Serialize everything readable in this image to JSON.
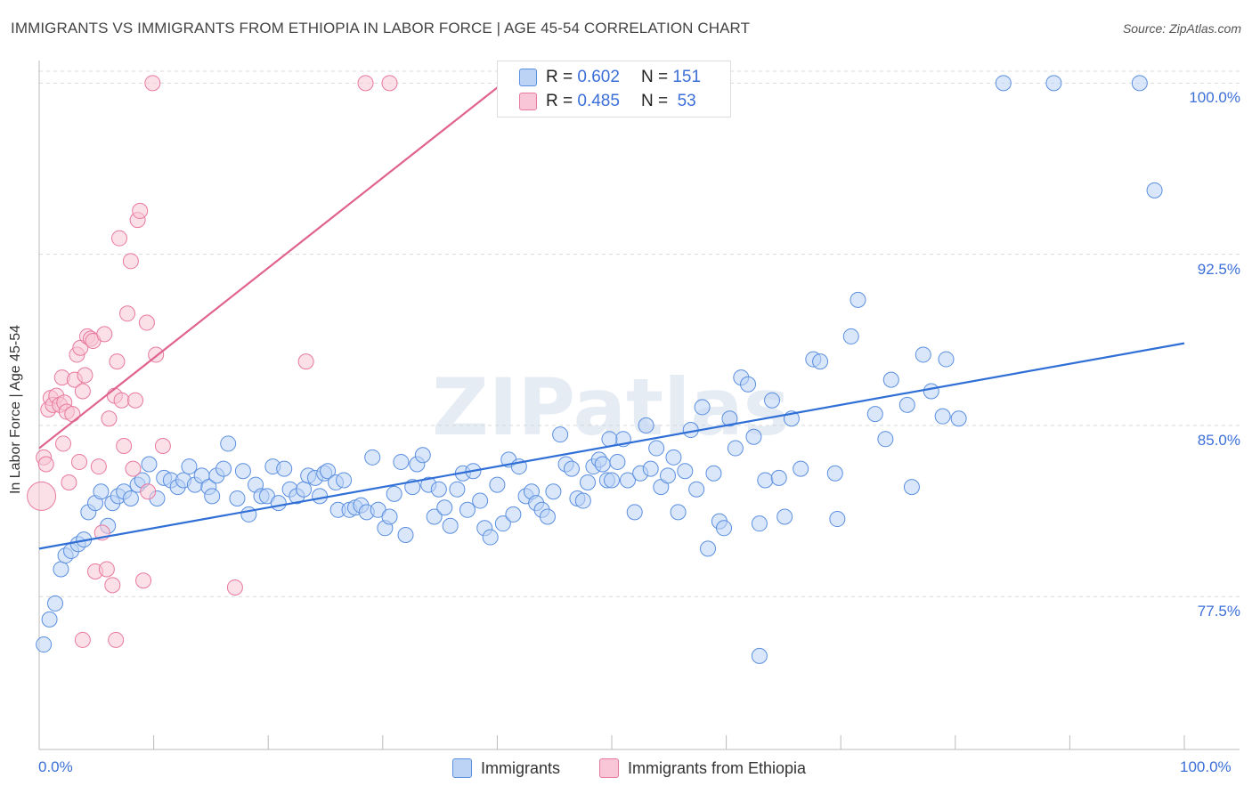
{
  "chart_data": {
    "type": "scatter",
    "title": "IMMIGRANTS VS IMMIGRANTS FROM ETHIOPIA IN LABOR FORCE | AGE 45-54 CORRELATION CHART",
    "source": "Source: ZipAtlas.com",
    "xlabel": "",
    "ylabel": "In Labor Force | Age 45-54",
    "xlim": [
      0,
      100
    ],
    "ylim": [
      70.8,
      101.3
    ],
    "x_tick_labels": [
      "0.0%",
      "100.0%"
    ],
    "y_ticks": [
      77.5,
      85.0,
      92.5,
      100.0
    ],
    "y_tick_labels": [
      "77.5%",
      "85.0%",
      "92.5%",
      "100.0%"
    ],
    "legend": {
      "r_label": "R =",
      "n_label": "N =",
      "entries": [
        {
          "name": "Immigrants",
          "r": "0.602",
          "n": "151",
          "color": "#5b8fe0",
          "fill": "#bcd3f5"
        },
        {
          "name": "Immigrants from Ethiopia",
          "r": "0.485",
          "n": "53",
          "color": "#e8799f",
          "fill": "#f8c6d6"
        }
      ]
    },
    "watermark": "ZIPatlas",
    "series": [
      {
        "name": "Immigrants",
        "color": "#5b8fe0",
        "trend": {
          "x": [
            0,
            100
          ],
          "y": [
            79.6,
            88.6
          ]
        },
        "points": [
          [
            0.4,
            75.4
          ],
          [
            0.9,
            76.5
          ],
          [
            1.4,
            77.2
          ],
          [
            1.9,
            78.7
          ],
          [
            2.3,
            79.3
          ],
          [
            2.8,
            79.5
          ],
          [
            3.4,
            79.8
          ],
          [
            3.9,
            80.0
          ],
          [
            4.3,
            81.2
          ],
          [
            4.9,
            81.6
          ],
          [
            5.4,
            82.1
          ],
          [
            6.0,
            80.6
          ],
          [
            6.4,
            81.6
          ],
          [
            6.9,
            81.9
          ],
          [
            7.4,
            82.1
          ],
          [
            8.0,
            81.8
          ],
          [
            8.6,
            82.4
          ],
          [
            9.0,
            82.6
          ],
          [
            9.6,
            83.3
          ],
          [
            10.3,
            81.8
          ],
          [
            10.9,
            82.7
          ],
          [
            11.5,
            82.6
          ],
          [
            12.1,
            82.3
          ],
          [
            12.6,
            82.6
          ],
          [
            13.1,
            83.2
          ],
          [
            13.6,
            82.4
          ],
          [
            14.2,
            82.8
          ],
          [
            14.8,
            82.3
          ],
          [
            15.1,
            81.9
          ],
          [
            15.5,
            82.8
          ],
          [
            16.1,
            83.1
          ],
          [
            16.5,
            84.2
          ],
          [
            17.3,
            81.8
          ],
          [
            17.8,
            83.0
          ],
          [
            18.3,
            81.1
          ],
          [
            18.9,
            82.4
          ],
          [
            19.4,
            81.9
          ],
          [
            19.9,
            81.9
          ],
          [
            20.4,
            83.2
          ],
          [
            20.9,
            81.6
          ],
          [
            21.4,
            83.1
          ],
          [
            21.9,
            82.2
          ],
          [
            22.5,
            81.9
          ],
          [
            23.1,
            82.2
          ],
          [
            23.5,
            82.8
          ],
          [
            24.1,
            82.7
          ],
          [
            24.5,
            81.9
          ],
          [
            24.9,
            82.9
          ],
          [
            25.2,
            83.0
          ],
          [
            25.9,
            82.5
          ],
          [
            26.1,
            81.3
          ],
          [
            26.6,
            82.6
          ],
          [
            27.1,
            81.3
          ],
          [
            27.6,
            81.4
          ],
          [
            28.1,
            81.5
          ],
          [
            28.6,
            81.2
          ],
          [
            29.1,
            83.6
          ],
          [
            29.6,
            81.3
          ],
          [
            30.2,
            80.5
          ],
          [
            30.6,
            81.0
          ],
          [
            31.0,
            82.0
          ],
          [
            31.6,
            83.4
          ],
          [
            32.0,
            80.2
          ],
          [
            32.6,
            82.3
          ],
          [
            33.0,
            83.3
          ],
          [
            33.5,
            83.7
          ],
          [
            34.0,
            82.4
          ],
          [
            34.5,
            81.0
          ],
          [
            34.9,
            82.2
          ],
          [
            35.4,
            81.4
          ],
          [
            35.9,
            80.6
          ],
          [
            36.5,
            82.2
          ],
          [
            37.0,
            82.9
          ],
          [
            37.4,
            81.3
          ],
          [
            37.9,
            83.0
          ],
          [
            38.5,
            81.7
          ],
          [
            38.9,
            80.5
          ],
          [
            39.4,
            80.1
          ],
          [
            40.0,
            82.4
          ],
          [
            40.5,
            80.7
          ],
          [
            41.0,
            83.5
          ],
          [
            41.4,
            81.1
          ],
          [
            41.9,
            83.2
          ],
          [
            42.5,
            81.9
          ],
          [
            43.0,
            82.1
          ],
          [
            43.4,
            81.6
          ],
          [
            43.9,
            81.3
          ],
          [
            44.4,
            81.0
          ],
          [
            44.9,
            82.1
          ],
          [
            45.5,
            84.6
          ],
          [
            46.0,
            83.3
          ],
          [
            46.5,
            83.1
          ],
          [
            47.0,
            81.8
          ],
          [
            47.5,
            81.7
          ],
          [
            47.9,
            82.5
          ],
          [
            48.4,
            83.2
          ],
          [
            48.9,
            83.5
          ],
          [
            49.2,
            83.3
          ],
          [
            49.6,
            82.6
          ],
          [
            50.0,
            82.6
          ],
          [
            50.5,
            83.4
          ],
          [
            51.0,
            84.4
          ],
          [
            51.4,
            82.6
          ],
          [
            52.0,
            81.2
          ],
          [
            52.5,
            82.9
          ],
          [
            53.0,
            85.0
          ],
          [
            53.4,
            83.1
          ],
          [
            53.9,
            84.0
          ],
          [
            54.3,
            82.3
          ],
          [
            54.9,
            82.8
          ],
          [
            55.4,
            83.6
          ],
          [
            55.8,
            81.2
          ],
          [
            56.4,
            83.0
          ],
          [
            56.9,
            84.8
          ],
          [
            57.4,
            82.2
          ],
          [
            57.9,
            85.8
          ],
          [
            58.4,
            79.6
          ],
          [
            58.9,
            82.9
          ],
          [
            59.4,
            80.8
          ],
          [
            59.8,
            80.5
          ],
          [
            60.3,
            85.3
          ],
          [
            60.8,
            84.0
          ],
          [
            61.3,
            87.1
          ],
          [
            61.9,
            86.8
          ],
          [
            62.4,
            84.5
          ],
          [
            62.9,
            80.7
          ],
          [
            63.4,
            82.6
          ],
          [
            64.0,
            86.1
          ],
          [
            64.6,
            82.7
          ],
          [
            65.1,
            81.0
          ],
          [
            65.7,
            85.3
          ],
          [
            66.5,
            83.1
          ],
          [
            67.6,
            87.9
          ],
          [
            68.2,
            87.8
          ],
          [
            69.5,
            82.9
          ],
          [
            69.7,
            80.9
          ],
          [
            70.9,
            88.9
          ],
          [
            71.5,
            90.5
          ],
          [
            73.0,
            85.5
          ],
          [
            73.9,
            84.4
          ],
          [
            74.4,
            87.0
          ],
          [
            75.8,
            85.9
          ],
          [
            76.2,
            82.3
          ],
          [
            77.2,
            88.1
          ],
          [
            77.9,
            86.5
          ],
          [
            78.9,
            85.4
          ],
          [
            79.2,
            87.9
          ],
          [
            80.3,
            85.3
          ],
          [
            84.2,
            100.0
          ],
          [
            88.6,
            100.0
          ],
          [
            96.1,
            100.0
          ],
          [
            97.4,
            95.3
          ],
          [
            62.9,
            74.9
          ],
          [
            49.8,
            84.4
          ]
        ]
      },
      {
        "name": "Immigrants from Ethiopia",
        "color": "#e8799f",
        "trend": {
          "x": [
            0,
            40.5
          ],
          "y": [
            84.0,
            100.0
          ]
        },
        "points": [
          [
            0.2,
            81.9
          ],
          [
            0.4,
            83.6
          ],
          [
            0.6,
            83.3
          ],
          [
            0.8,
            85.7
          ],
          [
            1.0,
            86.2
          ],
          [
            1.2,
            85.9
          ],
          [
            1.5,
            86.3
          ],
          [
            1.8,
            85.9
          ],
          [
            2.0,
            87.1
          ],
          [
            2.2,
            86.0
          ],
          [
            2.4,
            85.6
          ],
          [
            2.6,
            82.5
          ],
          [
            2.9,
            85.5
          ],
          [
            3.1,
            87.0
          ],
          [
            3.3,
            88.1
          ],
          [
            3.5,
            83.4
          ],
          [
            3.6,
            88.4
          ],
          [
            3.8,
            86.5
          ],
          [
            4.0,
            87.2
          ],
          [
            4.2,
            88.9
          ],
          [
            4.5,
            88.8
          ],
          [
            4.7,
            88.7
          ],
          [
            4.9,
            78.6
          ],
          [
            5.2,
            83.2
          ],
          [
            5.5,
            80.3
          ],
          [
            5.7,
            89.0
          ],
          [
            5.9,
            78.7
          ],
          [
            6.1,
            85.3
          ],
          [
            6.4,
            78.0
          ],
          [
            6.6,
            86.3
          ],
          [
            6.8,
            87.8
          ],
          [
            7.0,
            93.2
          ],
          [
            7.2,
            86.1
          ],
          [
            7.4,
            84.1
          ],
          [
            7.7,
            89.9
          ],
          [
            8.0,
            92.2
          ],
          [
            8.2,
            83.1
          ],
          [
            8.4,
            86.1
          ],
          [
            8.6,
            94.0
          ],
          [
            8.8,
            94.4
          ],
          [
            9.4,
            89.5
          ],
          [
            9.1,
            78.2
          ],
          [
            9.5,
            82.1
          ],
          [
            9.9,
            100.0
          ],
          [
            10.2,
            88.1
          ],
          [
            10.8,
            84.1
          ],
          [
            2.1,
            84.2
          ],
          [
            6.7,
            75.6
          ],
          [
            17.1,
            77.9
          ],
          [
            23.3,
            87.8
          ],
          [
            28.5,
            100.0
          ],
          [
            30.6,
            100.0
          ],
          [
            3.8,
            75.6
          ]
        ]
      }
    ]
  }
}
